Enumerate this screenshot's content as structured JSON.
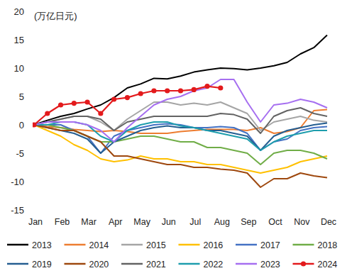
{
  "chart_data": {
    "type": "line",
    "y_label": "(万亿日元)",
    "x": [
      0,
      0.5,
      1,
      1.5,
      2,
      2.5,
      3,
      3.5,
      4,
      4.5,
      5,
      5.5,
      6,
      6.5,
      7,
      7.5,
      8,
      8.5,
      9,
      9.5,
      10,
      10.5,
      11
    ],
    "xlim": [
      0,
      11
    ],
    "xticks": [
      {
        "value": 0,
        "label": "Jan"
      },
      {
        "value": 1,
        "label": "Feb"
      },
      {
        "value": 2,
        "label": "Mar"
      },
      {
        "value": 3,
        "label": "Apr"
      },
      {
        "value": 4,
        "label": "May"
      },
      {
        "value": 5,
        "label": "Jun"
      },
      {
        "value": 6,
        "label": "Jul"
      },
      {
        "value": 7,
        "label": "Aug"
      },
      {
        "value": 8,
        "label": "Sep"
      },
      {
        "value": 9,
        "label": "Oct"
      },
      {
        "value": 10,
        "label": "Nov"
      },
      {
        "value": 11,
        "label": "Dec"
      }
    ],
    "ylim": [
      -15,
      20
    ],
    "yticks": [
      -15,
      -10,
      -5,
      0,
      5,
      10,
      15,
      20
    ],
    "grid": false,
    "legend": "bottom",
    "series": [
      {
        "name": "2013",
        "color": "#000000",
        "values": [
          0,
          0.8,
          1.5,
          2,
          2.8,
          3.5,
          4.8,
          6.5,
          7.2,
          8.2,
          8.1,
          8.6,
          9.3,
          9.7,
          10,
          9.9,
          9.7,
          10,
          10.4,
          11,
          12.5,
          13.6,
          15.8
        ]
      },
      {
        "name": "2014",
        "color": "#ED7D31",
        "values": [
          0,
          -0.3,
          -0.5,
          -0.8,
          -1,
          -1.2,
          -1,
          -1.2,
          -1.5,
          -1.5,
          -1.5,
          -1.2,
          -1,
          -0.8,
          -0.8,
          -0.8,
          -1,
          -0.5,
          -1.5,
          -1.2,
          -0.5,
          2.5,
          2.7
        ]
      },
      {
        "name": "2015",
        "color": "#A5A5A5",
        "values": [
          0,
          0.5,
          1,
          1.5,
          1.5,
          0.5,
          -1,
          1,
          2.5,
          4,
          4,
          3.5,
          3.8,
          3.5,
          4,
          3,
          2,
          -1,
          0.5,
          1,
          1.5,
          0.8,
          0.5
        ]
      },
      {
        "name": "2016",
        "color": "#FFC000",
        "values": [
          0,
          -1,
          -2,
          -3.5,
          -4.5,
          -6,
          -6.5,
          -6.2,
          -5.5,
          -6,
          -6,
          -6.5,
          -6.5,
          -7,
          -7,
          -7.5,
          -8,
          -8.5,
          -8,
          -7.5,
          -6.5,
          -6,
          -5.5
        ]
      },
      {
        "name": "2017",
        "color": "#4472C4",
        "values": [
          0,
          0,
          0,
          -1,
          -2,
          -5,
          -2,
          -1,
          -0.5,
          0,
          0.2,
          0,
          -0.5,
          -0.5,
          -0.3,
          -0.5,
          -1.5,
          -4.5,
          -3,
          -2.5,
          -1,
          -0.5,
          -0.3
        ]
      },
      {
        "name": "2018",
        "color": "#70AD47",
        "values": [
          0,
          0,
          -0.5,
          -1,
          -2,
          -3,
          -3,
          -2.5,
          -2,
          -2,
          -2.5,
          -3,
          -3,
          -4,
          -4,
          -4.5,
          -5,
          -7,
          -5,
          -4.5,
          -4.5,
          -5,
          -6
        ]
      },
      {
        "name": "2019",
        "color": "#255E91",
        "values": [
          0,
          -0.5,
          -1,
          -1.5,
          -2.5,
          -5,
          -3,
          -2,
          -1,
          -0.5,
          -0.2,
          -0.5,
          -0.5,
          -1,
          -1,
          -1.5,
          -2,
          -4.5,
          -2,
          -1,
          -0.5,
          0,
          0.3
        ]
      },
      {
        "name": "2020",
        "color": "#9E480E",
        "values": [
          0,
          -0.5,
          -1,
          -1,
          -2,
          -3,
          -5.5,
          -5.5,
          -6,
          -6.5,
          -7,
          -7,
          -7.5,
          -7.5,
          -7.8,
          -8,
          -8.5,
          -11,
          -9.5,
          -9.5,
          -8.5,
          -9,
          -9.3
        ]
      },
      {
        "name": "2021",
        "color": "#636363",
        "values": [
          0,
          0.5,
          1,
          1.5,
          1.5,
          1,
          -1,
          0.5,
          1,
          1.5,
          1.5,
          1.5,
          1.5,
          1.5,
          2,
          1.8,
          1,
          -1.5,
          1.5,
          2.5,
          3,
          2,
          1.5
        ]
      },
      {
        "name": "2022",
        "color": "#1E9EAD",
        "values": [
          0,
          0,
          0.5,
          0.5,
          0,
          -2,
          -3,
          -1,
          0,
          0.5,
          0.5,
          -0.2,
          -0.5,
          -1,
          -1.5,
          -2,
          -2.5,
          -4.5,
          -3,
          -2,
          -1.5,
          -1,
          -1
        ]
      },
      {
        "name": "2023",
        "color": "#A66FF0",
        "values": [
          0,
          0.5,
          0.5,
          0.5,
          0,
          -1,
          -3,
          -0.5,
          1.5,
          3.5,
          4.5,
          5,
          6,
          6.5,
          8,
          8,
          4,
          0.5,
          3.5,
          3.8,
          4.5,
          4,
          3
        ]
      },
      {
        "name": "2024",
        "color": "#E31A1C",
        "marker": "circle",
        "values": [
          0,
          2,
          3.5,
          3.8,
          4,
          2,
          4.5,
          4.8,
          5.5,
          6,
          6,
          6,
          6.2,
          6.8,
          6.5,
          null,
          null,
          null,
          null,
          null,
          null,
          null,
          null
        ]
      }
    ]
  }
}
